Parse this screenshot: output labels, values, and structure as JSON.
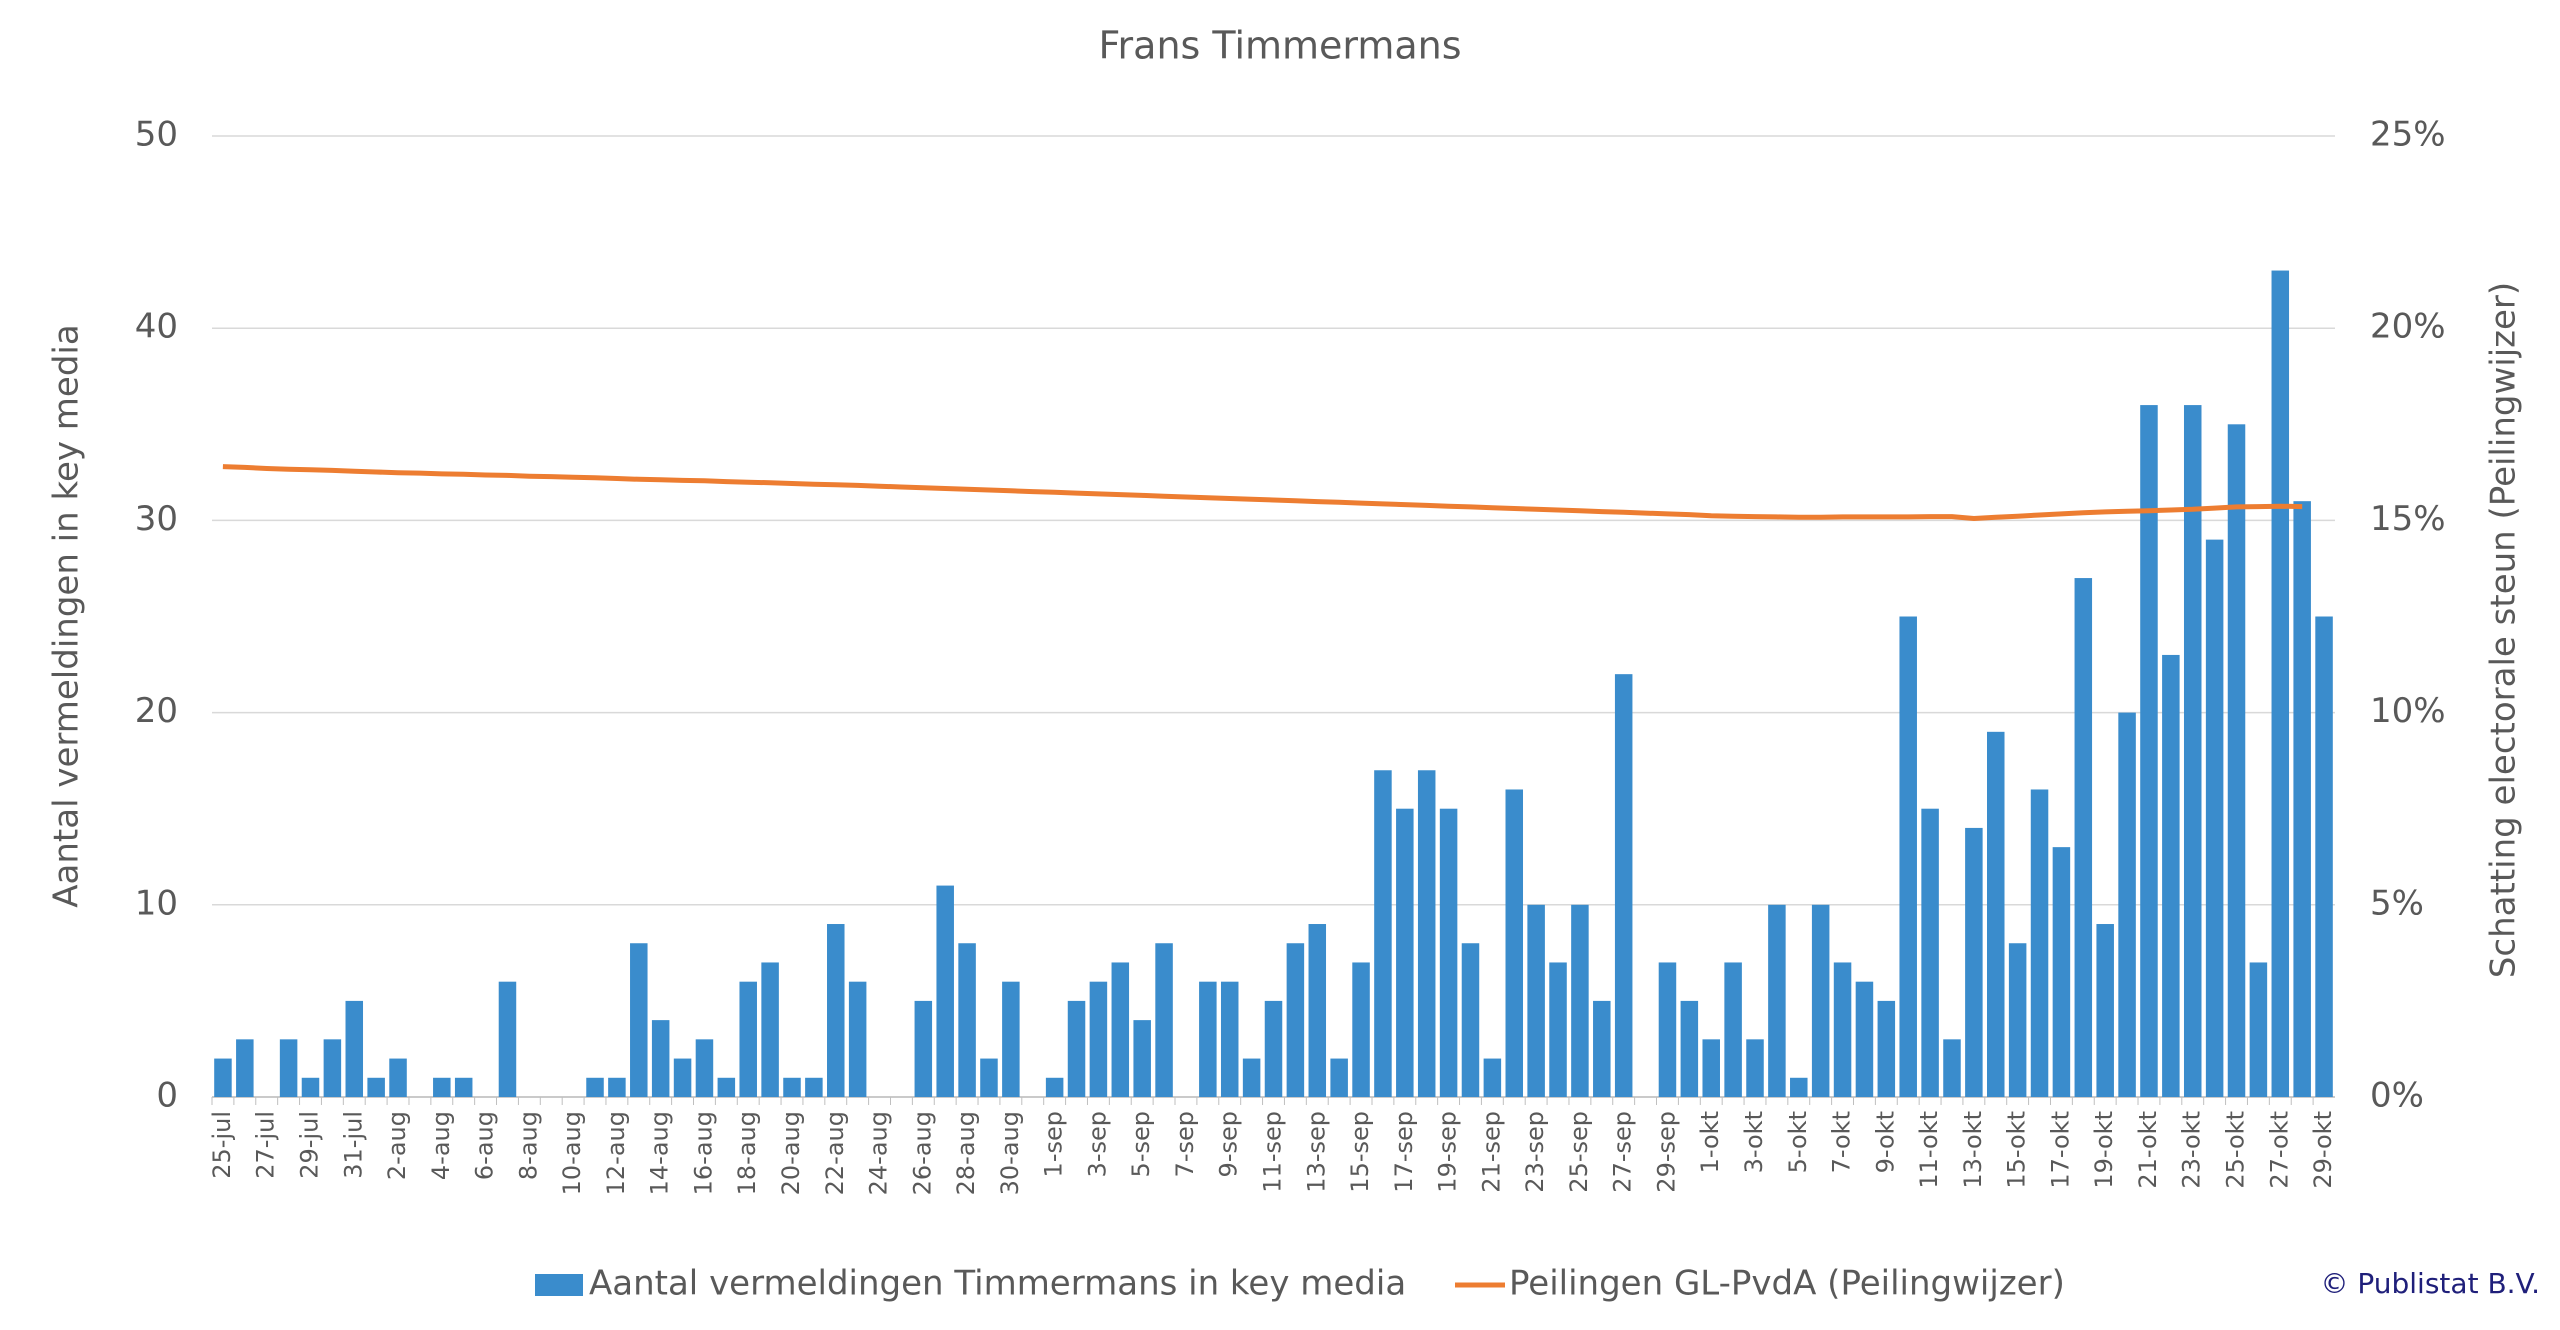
{
  "chart_data": {
    "type": "bar",
    "title": "Frans Timmermans",
    "y_label": "Aantal vermeldingen in key media",
    "y2_label": "Schatting electorale steun (Peilingwijzer)",
    "source": "© Publistat B.V.",
    "legend": "bottom",
    "grid": true,
    "ylim": [
      0,
      50
    ],
    "yticks": [
      0,
      10,
      20,
      30,
      40,
      50
    ],
    "y2lim": [
      0,
      25
    ],
    "y2ticks": [
      {
        "value": 0,
        "label": "0%"
      },
      {
        "value": 5,
        "label": "5%"
      },
      {
        "value": 10,
        "label": "10%"
      },
      {
        "value": 15,
        "label": "15%"
      },
      {
        "value": 20,
        "label": "20%"
      },
      {
        "value": 25,
        "label": "25%"
      }
    ],
    "categories": [
      "25-jul",
      null,
      "27-jul",
      null,
      "29-jul",
      null,
      "31-jul",
      null,
      "2-aug",
      null,
      "4-aug",
      null,
      "6-aug",
      null,
      "8-aug",
      null,
      "10-aug",
      null,
      "12-aug",
      null,
      "14-aug",
      null,
      "16-aug",
      null,
      "18-aug",
      null,
      "20-aug",
      null,
      "22-aug",
      null,
      "24-aug",
      null,
      "26-aug",
      null,
      "28-aug",
      null,
      "30-aug",
      null,
      "1-sep",
      null,
      "3-sep",
      null,
      "5-sep",
      null,
      "7-sep",
      null,
      "9-sep",
      null,
      "11-sep",
      null,
      "13-sep",
      null,
      "15-sep",
      null,
      "17-sep",
      null,
      "19-sep",
      null,
      "21-sep",
      null,
      "23-sep",
      null,
      "25-sep",
      null,
      "27-sep",
      null,
      "29-sep",
      null,
      "1-okt",
      null,
      "3-okt",
      null,
      "5-okt",
      null,
      "7-okt",
      null,
      "9-okt",
      null,
      "11-okt",
      null,
      "13-okt",
      null,
      "15-okt",
      null,
      "17-okt",
      null,
      "19-okt",
      null,
      "21-okt",
      null,
      "23-okt",
      null,
      "25-okt",
      null,
      "27-okt",
      null,
      "29-okt"
    ],
    "series": [
      {
        "name": "Aantal vermeldingen Timmermans in key media",
        "type": "bar",
        "color": "#3a8ccc",
        "values": [
          2,
          3,
          0,
          3,
          1,
          3,
          5,
          1,
          2,
          0,
          1,
          1,
          0,
          6,
          0,
          0,
          0,
          1,
          1,
          8,
          4,
          2,
          3,
          1,
          6,
          7,
          1,
          1,
          9,
          6,
          0,
          0,
          5,
          11,
          8,
          2,
          6,
          0,
          1,
          5,
          6,
          7,
          4,
          8,
          0,
          6,
          6,
          2,
          5,
          8,
          9,
          2,
          7,
          17,
          15,
          17,
          15,
          8,
          2,
          16,
          10,
          7,
          10,
          5,
          22,
          0,
          7,
          5,
          3,
          7,
          3,
          10,
          1,
          10,
          7,
          6,
          5,
          25,
          15,
          3,
          14,
          19,
          8,
          16,
          13,
          27,
          9,
          20,
          36,
          23,
          36,
          29,
          35,
          7,
          43,
          31,
          25
        ]
      },
      {
        "name": "Peilingen GL-PvdA (Peilingwijzer)",
        "type": "line",
        "axis": "y2",
        "color": "#ed7d31",
        "values": [
          16.4,
          16.38,
          16.35,
          16.33,
          16.32,
          16.3,
          16.28,
          16.26,
          16.24,
          16.23,
          16.21,
          16.2,
          16.18,
          16.17,
          16.15,
          16.14,
          16.12,
          16.11,
          16.09,
          16.07,
          16.06,
          16.04,
          16.03,
          16.01,
          15.99,
          15.98,
          15.96,
          15.94,
          15.93,
          15.91,
          15.89,
          15.87,
          15.85,
          15.83,
          15.81,
          15.79,
          15.77,
          15.75,
          15.73,
          15.71,
          15.69,
          15.67,
          15.65,
          15.63,
          15.61,
          15.59,
          15.57,
          15.55,
          15.53,
          15.51,
          15.49,
          15.47,
          15.45,
          15.43,
          15.41,
          15.39,
          15.37,
          15.35,
          15.33,
          15.31,
          15.29,
          15.27,
          15.25,
          15.23,
          15.21,
          15.19,
          15.17,
          15.15,
          15.12,
          15.11,
          15.1,
          15.09,
          15.08,
          15.08,
          15.09,
          15.09,
          15.09,
          15.09,
          15.1,
          15.1,
          15.05,
          15.08,
          15.11,
          15.14,
          15.17,
          15.2,
          15.22,
          15.24,
          15.25,
          15.27,
          15.29,
          15.32,
          15.35,
          15.36,
          15.37,
          15.36,
          null
        ]
      }
    ]
  }
}
